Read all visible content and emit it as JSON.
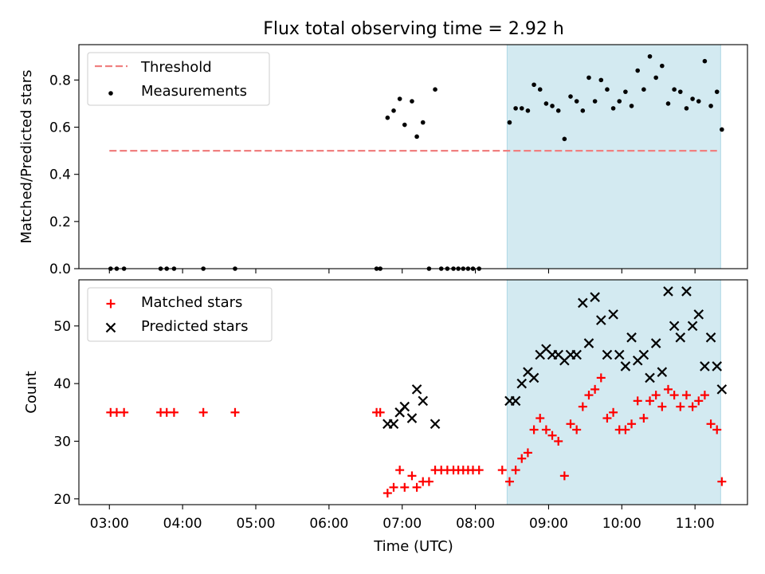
{
  "title": "Flux total observing time = 2.92 h",
  "xlabel": "Time (UTC)",
  "x_ticks": [
    "03:00",
    "04:00",
    "05:00",
    "06:00",
    "07:00",
    "08:00",
    "09:00",
    "10:00",
    "11:00"
  ],
  "colors": {
    "threshold": "#f08080",
    "measurements": "#000000",
    "matched": "#ff0000",
    "predicted": "#000000",
    "shade_fill": "#d3eaf1",
    "shade_edge": "#add8e6"
  },
  "chart_data": [
    {
      "type": "scatter",
      "name": "ratio-panel",
      "ylabel": "Matched/Predicted stars",
      "xlim": [
        "02:35",
        "11:43"
      ],
      "ylim": [
        0,
        0.95
      ],
      "y_ticks": [
        "0.0",
        "0.2",
        "0.4",
        "0.6",
        "0.8"
      ],
      "shaded_region": {
        "x0": "08:26",
        "x1": "11:21"
      },
      "legend": {
        "placement": "upper-left",
        "entries": [
          "Threshold",
          "Measurements"
        ]
      },
      "threshold": {
        "name": "Threshold",
        "y": 0.5,
        "x0": "03:00",
        "x1": "11:18"
      },
      "series": [
        {
          "name": "Measurements",
          "marker": "dot",
          "points": [
            [
              "03:01",
              0
            ],
            [
              "03:06",
              0
            ],
            [
              "03:12",
              0
            ],
            [
              "03:42",
              0
            ],
            [
              "03:47",
              0
            ],
            [
              "03:53",
              0
            ],
            [
              "04:17",
              0
            ],
            [
              "04:43",
              0
            ],
            [
              "06:39",
              0
            ],
            [
              "06:42",
              0
            ],
            [
              "06:48",
              0.64
            ],
            [
              "06:53",
              0.67
            ],
            [
              "06:58",
              0.72
            ],
            [
              "07:02",
              0.61
            ],
            [
              "07:08",
              0.71
            ],
            [
              "07:12",
              0.56
            ],
            [
              "07:17",
              0.62
            ],
            [
              "07:22",
              0
            ],
            [
              "07:27",
              0.76
            ],
            [
              "07:32",
              0
            ],
            [
              "07:37",
              0
            ],
            [
              "07:42",
              0
            ],
            [
              "07:46",
              0
            ],
            [
              "07:50",
              0
            ],
            [
              "07:54",
              0
            ],
            [
              "07:58",
              0
            ],
            [
              "08:03",
              0
            ],
            [
              "08:28",
              0.62
            ],
            [
              "08:33",
              0.68
            ],
            [
              "08:38",
              0.68
            ],
            [
              "08:43",
              0.67
            ],
            [
              "08:48",
              0.78
            ],
            [
              "08:53",
              0.76
            ],
            [
              "08:58",
              0.7
            ],
            [
              "09:03",
              0.69
            ],
            [
              "09:08",
              0.67
            ],
            [
              "09:13",
              0.55
            ],
            [
              "09:18",
              0.73
            ],
            [
              "09:23",
              0.71
            ],
            [
              "09:28",
              0.67
            ],
            [
              "09:33",
              0.81
            ],
            [
              "09:38",
              0.71
            ],
            [
              "09:43",
              0.8
            ],
            [
              "09:48",
              0.76
            ],
            [
              "09:53",
              0.68
            ],
            [
              "09:58",
              0.71
            ],
            [
              "10:03",
              0.75
            ],
            [
              "10:08",
              0.69
            ],
            [
              "10:13",
              0.84
            ],
            [
              "10:18",
              0.76
            ],
            [
              "10:23",
              0.9
            ],
            [
              "10:28",
              0.81
            ],
            [
              "10:33",
              0.86
            ],
            [
              "10:38",
              0.7
            ],
            [
              "10:43",
              0.76
            ],
            [
              "10:48",
              0.75
            ],
            [
              "10:53",
              0.68
            ],
            [
              "10:58",
              0.72
            ],
            [
              "11:03",
              0.71
            ],
            [
              "11:08",
              0.88
            ],
            [
              "11:13",
              0.69
            ],
            [
              "11:18",
              0.75
            ],
            [
              "11:22",
              0.59
            ]
          ]
        }
      ]
    },
    {
      "type": "scatter",
      "name": "count-panel",
      "ylabel": "Count",
      "xlim": [
        "02:35",
        "11:43"
      ],
      "ylim": [
        19,
        58
      ],
      "y_ticks": [
        "20",
        "30",
        "40",
        "50"
      ],
      "shaded_region": {
        "x0": "08:26",
        "x1": "11:21"
      },
      "legend": {
        "placement": "upper-left",
        "entries": [
          "Matched stars",
          "Predicted stars"
        ]
      },
      "series": [
        {
          "name": "Matched stars",
          "marker": "plus",
          "points": [
            [
              "03:01",
              35
            ],
            [
              "03:06",
              35
            ],
            [
              "03:12",
              35
            ],
            [
              "03:42",
              35
            ],
            [
              "03:47",
              35
            ],
            [
              "03:53",
              35
            ],
            [
              "04:17",
              35
            ],
            [
              "04:43",
              35
            ],
            [
              "06:39",
              35
            ],
            [
              "06:42",
              35
            ],
            [
              "06:48",
              21
            ],
            [
              "06:53",
              22
            ],
            [
              "06:58",
              25
            ],
            [
              "07:02",
              22
            ],
            [
              "07:08",
              24
            ],
            [
              "07:12",
              22
            ],
            [
              "07:17",
              23
            ],
            [
              "07:22",
              23
            ],
            [
              "07:27",
              25
            ],
            [
              "07:32",
              25
            ],
            [
              "07:37",
              25
            ],
            [
              "07:42",
              25
            ],
            [
              "07:46",
              25
            ],
            [
              "07:50",
              25
            ],
            [
              "07:54",
              25
            ],
            [
              "07:58",
              25
            ],
            [
              "08:03",
              25
            ],
            [
              "08:22",
              25
            ],
            [
              "08:28",
              23
            ],
            [
              "08:33",
              25
            ],
            [
              "08:38",
              27
            ],
            [
              "08:43",
              28
            ],
            [
              "08:48",
              32
            ],
            [
              "08:53",
              34
            ],
            [
              "08:58",
              32
            ],
            [
              "09:03",
              31
            ],
            [
              "09:08",
              30
            ],
            [
              "09:13",
              24
            ],
            [
              "09:18",
              33
            ],
            [
              "09:23",
              32
            ],
            [
              "09:28",
              36
            ],
            [
              "09:33",
              38
            ],
            [
              "09:38",
              39
            ],
            [
              "09:43",
              41
            ],
            [
              "09:48",
              34
            ],
            [
              "09:53",
              35
            ],
            [
              "09:58",
              32
            ],
            [
              "10:03",
              32
            ],
            [
              "10:08",
              33
            ],
            [
              "10:13",
              37
            ],
            [
              "10:18",
              34
            ],
            [
              "10:23",
              37
            ],
            [
              "10:28",
              38
            ],
            [
              "10:33",
              36
            ],
            [
              "10:38",
              39
            ],
            [
              "10:43",
              38
            ],
            [
              "10:48",
              36
            ],
            [
              "10:53",
              38
            ],
            [
              "10:58",
              36
            ],
            [
              "11:03",
              37
            ],
            [
              "11:08",
              38
            ],
            [
              "11:13",
              33
            ],
            [
              "11:18",
              32
            ],
            [
              "11:22",
              23
            ]
          ]
        },
        {
          "name": "Predicted stars",
          "marker": "cross",
          "points": [
            [
              "06:48",
              33
            ],
            [
              "06:53",
              33
            ],
            [
              "06:58",
              35
            ],
            [
              "07:02",
              36
            ],
            [
              "07:08",
              34
            ],
            [
              "07:12",
              39
            ],
            [
              "07:17",
              37
            ],
            [
              "07:27",
              33
            ],
            [
              "08:28",
              37
            ],
            [
              "08:33",
              37
            ],
            [
              "08:38",
              40
            ],
            [
              "08:43",
              42
            ],
            [
              "08:48",
              41
            ],
            [
              "08:53",
              45
            ],
            [
              "08:58",
              46
            ],
            [
              "09:03",
              45
            ],
            [
              "09:08",
              45
            ],
            [
              "09:13",
              44
            ],
            [
              "09:18",
              45
            ],
            [
              "09:23",
              45
            ],
            [
              "09:28",
              54
            ],
            [
              "09:33",
              47
            ],
            [
              "09:38",
              55
            ],
            [
              "09:43",
              51
            ],
            [
              "09:48",
              45
            ],
            [
              "09:53",
              52
            ],
            [
              "09:58",
              45
            ],
            [
              "10:03",
              43
            ],
            [
              "10:08",
              48
            ],
            [
              "10:13",
              44
            ],
            [
              "10:18",
              45
            ],
            [
              "10:23",
              41
            ],
            [
              "10:28",
              47
            ],
            [
              "10:33",
              42
            ],
            [
              "10:38",
              56
            ],
            [
              "10:43",
              50
            ],
            [
              "10:48",
              48
            ],
            [
              "10:53",
              56
            ],
            [
              "10:58",
              50
            ],
            [
              "11:03",
              52
            ],
            [
              "11:08",
              43
            ],
            [
              "11:13",
              48
            ],
            [
              "11:18",
              43
            ],
            [
              "11:22",
              39
            ]
          ]
        }
      ]
    }
  ]
}
